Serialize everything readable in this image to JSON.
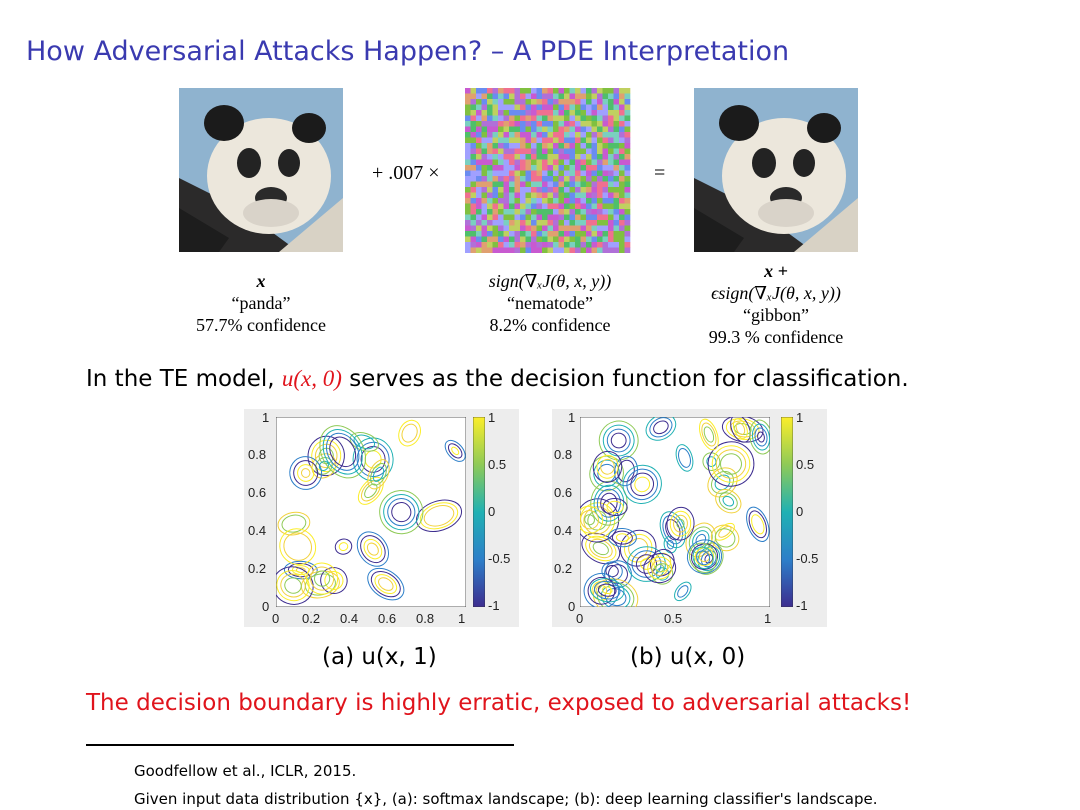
{
  "slide": {
    "title": "How Adversarial Attacks Happen? – A PDE Interpretation"
  },
  "figure_top": {
    "operator_plus": "+ .007 ×",
    "operator_eq": "=",
    "col1": {
      "math": "x",
      "label": "“panda”",
      "confidence": "57.7% confidence"
    },
    "col2": {
      "math": "sign(∇ₓJ(θ, x, y))",
      "label": "“nematode”",
      "confidence": "8.2% confidence"
    },
    "col3": {
      "math_line1": "x +",
      "math_line2": "ϵsign(∇ₓJ(θ, x, y))",
      "label": "“gibbon”",
      "confidence": "99.3 % confidence"
    }
  },
  "body": {
    "prefix": "In the TE model, ",
    "highlight": "u(x, 0)",
    "suffix": " serves as the decision function for classification."
  },
  "plots": {
    "a": {
      "caption": "(a) u(x, 1)",
      "xticks": [
        "0",
        "0.2",
        "0.4",
        "0.6",
        "0.8",
        "1"
      ],
      "yticks": [
        "0",
        "0.2",
        "0.4",
        "0.6",
        "0.8",
        "1"
      ],
      "colorbar_ticks": [
        "1",
        "0.5",
        "0",
        "-0.5",
        "-1"
      ]
    },
    "b": {
      "caption": "(b) u(x, 0)",
      "xticks": [
        "0",
        "0.5",
        "1"
      ],
      "yticks": [
        "0",
        "0.2",
        "0.4",
        "0.6",
        "0.8",
        "1"
      ],
      "colorbar_ticks": [
        "1",
        "0.5",
        "0",
        "-0.5",
        "-1"
      ]
    },
    "colormap": [
      "#3d2d8f",
      "#2d7fc9",
      "#20b1b3",
      "#8fca57",
      "#f2d23c",
      "#fbee2a"
    ]
  },
  "statement": "The decision boundary is highly erratic, exposed to adversarial attacks!",
  "footnotes": {
    "line1": "Goodfellow et al., ICLR, 2015.",
    "line2": "Given input data distribution {x}, (a): softmax landscape; (b): deep learning classifier's landscape."
  }
}
